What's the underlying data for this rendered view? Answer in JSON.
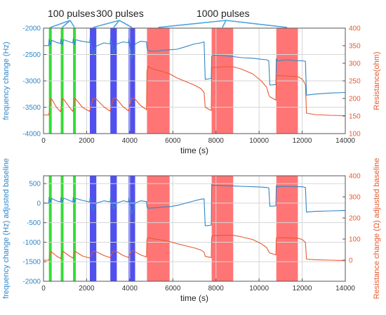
{
  "annotations": [
    {
      "label": "100 pulses"
    },
    {
      "label": "300 pulses"
    },
    {
      "label": "1000 pulses"
    }
  ],
  "colors": {
    "freq": "#2e86c8",
    "res": "#e8592f",
    "green": "#33dd33",
    "blue": "#5050ee",
    "red": "#ff6666",
    "bracket": "#4aa3df"
  },
  "chart_data": [
    {
      "type": "line",
      "title": "",
      "xlabel": "time (s)",
      "ylabel": "frequency change (Hz)",
      "y2label": "Resistance(ohm)",
      "xlim": [
        0,
        14000
      ],
      "ylim": [
        -4000,
        -2000
      ],
      "y2lim": [
        100,
        400
      ],
      "xticks": [
        0,
        2000,
        4000,
        6000,
        8000,
        10000,
        12000,
        14000
      ],
      "yticks": [
        -4000,
        -3500,
        -3000,
        -2500,
        -2000
      ],
      "y2ticks": [
        100,
        150,
        200,
        250,
        300,
        350,
        400
      ],
      "grid": true,
      "pulse_bands": [
        {
          "start": 250,
          "end": 380,
          "group": "green"
        },
        {
          "start": 800,
          "end": 930,
          "group": "green"
        },
        {
          "start": 1370,
          "end": 1500,
          "group": "green"
        },
        {
          "start": 2150,
          "end": 2450,
          "group": "blue"
        },
        {
          "start": 3100,
          "end": 3400,
          "group": "blue"
        },
        {
          "start": 3950,
          "end": 4250,
          "group": "blue"
        },
        {
          "start": 4800,
          "end": 5850,
          "group": "red"
        },
        {
          "start": 7800,
          "end": 8800,
          "group": "red"
        },
        {
          "start": 10800,
          "end": 11800,
          "group": "red"
        }
      ],
      "series": [
        {
          "axis": "left",
          "color": "freq",
          "x": [
            0,
            240,
            260,
            330,
            380,
            600,
            790,
            810,
            870,
            930,
            1200,
            1360,
            1380,
            1440,
            1500,
            1800,
            2140,
            2160,
            2300,
            2450,
            2800,
            3090,
            3110,
            3250,
            3400,
            3700,
            3940,
            3960,
            4100,
            4250,
            4500,
            4780,
            4800,
            4850,
            5200,
            5500,
            5850,
            6200,
            6600,
            7000,
            7300,
            7450,
            7500,
            7700,
            7780,
            7800,
            7850,
            8300,
            8800,
            9200,
            9700,
            10100,
            10350,
            10450,
            10500,
            10780,
            10800,
            10850,
            11300,
            11800,
            12000,
            12150,
            12200,
            12600,
            13300,
            14000
          ],
          "y": [
            -2330,
            -2330,
            -2210,
            -2320,
            -2230,
            -2270,
            -2290,
            -2200,
            -2320,
            -2220,
            -2260,
            -2280,
            -2200,
            -2310,
            -2220,
            -2250,
            -2270,
            -2200,
            -2520,
            -2340,
            -2280,
            -2300,
            -2200,
            -2480,
            -2300,
            -2260,
            -2280,
            -2200,
            -2590,
            -2300,
            -2250,
            -2260,
            -2370,
            -2430,
            -2440,
            -2420,
            -2410,
            -2400,
            -2350,
            -2300,
            -2280,
            -2260,
            -2970,
            -2960,
            -2950,
            -2540,
            -2510,
            -2520,
            -2540,
            -2560,
            -2570,
            -2590,
            -2600,
            -2620,
            -3080,
            -3070,
            -2580,
            -2620,
            -2600,
            -2620,
            -2620,
            -2630,
            -3270,
            -3250,
            -3230,
            -3220
          ]
        },
        {
          "axis": "right",
          "color": "res",
          "x": [
            0,
            240,
            260,
            330,
            380,
            600,
            790,
            810,
            870,
            930,
            1200,
            1360,
            1380,
            1440,
            1500,
            1800,
            2140,
            2160,
            2300,
            2450,
            2800,
            3090,
            3110,
            3250,
            3400,
            3700,
            3940,
            3960,
            4100,
            4250,
            4500,
            4780,
            4800,
            4850,
            5000,
            5500,
            5850,
            6200,
            6600,
            7000,
            7300,
            7450,
            7500,
            7700,
            7780,
            7800,
            7850,
            8300,
            8800,
            9200,
            9700,
            10100,
            10350,
            10450,
            10500,
            10780,
            10800,
            10850,
            11300,
            11800,
            12000,
            12150,
            12200,
            12600,
            13300,
            14000
          ],
          "y": [
            153,
            153,
            160,
            200,
            198,
            175,
            162,
            170,
            200,
            198,
            175,
            163,
            170,
            200,
            198,
            175,
            163,
            168,
            200,
            198,
            176,
            164,
            170,
            202,
            198,
            176,
            165,
            170,
            202,
            198,
            180,
            168,
            278,
            292,
            285,
            277,
            270,
            258,
            248,
            238,
            228,
            217,
            175,
            168,
            166,
            282,
            288,
            290,
            290,
            283,
            270,
            250,
            232,
            210,
            205,
            195,
            262,
            265,
            264,
            262,
            255,
            240,
            158,
            154,
            152,
            151
          ]
        }
      ]
    },
    {
      "type": "line",
      "title": "",
      "xlabel": "time (s)",
      "ylabel": "frequency change (Hz) adjusted baseline",
      "y2label": "Resistance change (Ω) adjusted baseline",
      "xlim": [
        0,
        14000
      ],
      "ylim": [
        -2000,
        700
      ],
      "y2lim": [
        -100,
        400
      ],
      "xticks": [
        0,
        2000,
        4000,
        6000,
        8000,
        10000,
        12000,
        14000
      ],
      "yticks": [
        -2000,
        -1500,
        -1000,
        -500,
        0,
        500
      ],
      "y2ticks": [
        0,
        100,
        200,
        300,
        400
      ],
      "grid": true,
      "pulse_bands": [
        {
          "start": 250,
          "end": 380,
          "group": "green"
        },
        {
          "start": 800,
          "end": 930,
          "group": "green"
        },
        {
          "start": 1370,
          "end": 1500,
          "group": "green"
        },
        {
          "start": 2150,
          "end": 2450,
          "group": "blue"
        },
        {
          "start": 3100,
          "end": 3400,
          "group": "blue"
        },
        {
          "start": 3950,
          "end": 4250,
          "group": "blue"
        },
        {
          "start": 4800,
          "end": 5850,
          "group": "red"
        },
        {
          "start": 7800,
          "end": 8800,
          "group": "red"
        },
        {
          "start": 10800,
          "end": 11800,
          "group": "red"
        }
      ],
      "series": [
        {
          "axis": "left",
          "color": "freq",
          "x": [
            0,
            240,
            260,
            330,
            380,
            600,
            790,
            810,
            870,
            930,
            1200,
            1360,
            1380,
            1440,
            1500,
            1800,
            2140,
            2160,
            2300,
            2450,
            2800,
            3090,
            3110,
            3250,
            3400,
            3700,
            3940,
            3960,
            4100,
            4250,
            4500,
            4780,
            4800,
            4850,
            5200,
            5500,
            5850,
            6200,
            6600,
            7000,
            7300,
            7450,
            7500,
            7700,
            7780,
            7800,
            7850,
            8300,
            8800,
            9200,
            9700,
            10100,
            10350,
            10450,
            10500,
            10780,
            10800,
            10850,
            11300,
            11800,
            12000,
            12150,
            12200,
            12600,
            13300,
            14000
          ],
          "y": [
            0,
            0,
            150,
            10,
            120,
            60,
            30,
            150,
            10,
            130,
            70,
            30,
            150,
            10,
            120,
            70,
            30,
            130,
            -200,
            0,
            60,
            30,
            140,
            -160,
            0,
            60,
            30,
            140,
            -280,
            0,
            60,
            40,
            -100,
            -130,
            -120,
            -100,
            -90,
            -60,
            0,
            60,
            100,
            110,
            -580,
            -570,
            -560,
            480,
            460,
            450,
            440,
            430,
            420,
            410,
            400,
            390,
            -80,
            -70,
            450,
            420,
            430,
            420,
            420,
            400,
            -230,
            -210,
            -200,
            -190
          ]
        },
        {
          "axis": "right",
          "color": "res",
          "x": [
            0,
            240,
            260,
            330,
            380,
            600,
            790,
            810,
            870,
            930,
            1200,
            1360,
            1380,
            1440,
            1500,
            1800,
            2140,
            2160,
            2300,
            2450,
            2800,
            3090,
            3110,
            3250,
            3400,
            3700,
            3940,
            3960,
            4100,
            4250,
            4500,
            4780,
            4800,
            4850,
            5000,
            5500,
            5850,
            6200,
            6600,
            7000,
            7300,
            7450,
            7500,
            7700,
            7780,
            7800,
            7850,
            8300,
            8800,
            9200,
            9700,
            10100,
            10350,
            10450,
            10500,
            10780,
            10800,
            10850,
            11300,
            11800,
            12000,
            12150,
            12200,
            12600,
            13300,
            14000
          ],
          "y": [
            0,
            0,
            5,
            40,
            38,
            20,
            8,
            15,
            42,
            40,
            20,
            10,
            15,
            42,
            40,
            20,
            10,
            15,
            42,
            40,
            22,
            12,
            18,
            44,
            40,
            22,
            13,
            18,
            45,
            40,
            25,
            15,
            98,
            108,
            103,
            95,
            88,
            78,
            68,
            58,
            48,
            38,
            18,
            14,
            12,
            110,
            116,
            118,
            118,
            110,
            98,
            78,
            60,
            40,
            34,
            25,
            104,
            107,
            106,
            104,
            98,
            84,
            5,
            2,
            0,
            -2
          ]
        }
      ]
    }
  ]
}
